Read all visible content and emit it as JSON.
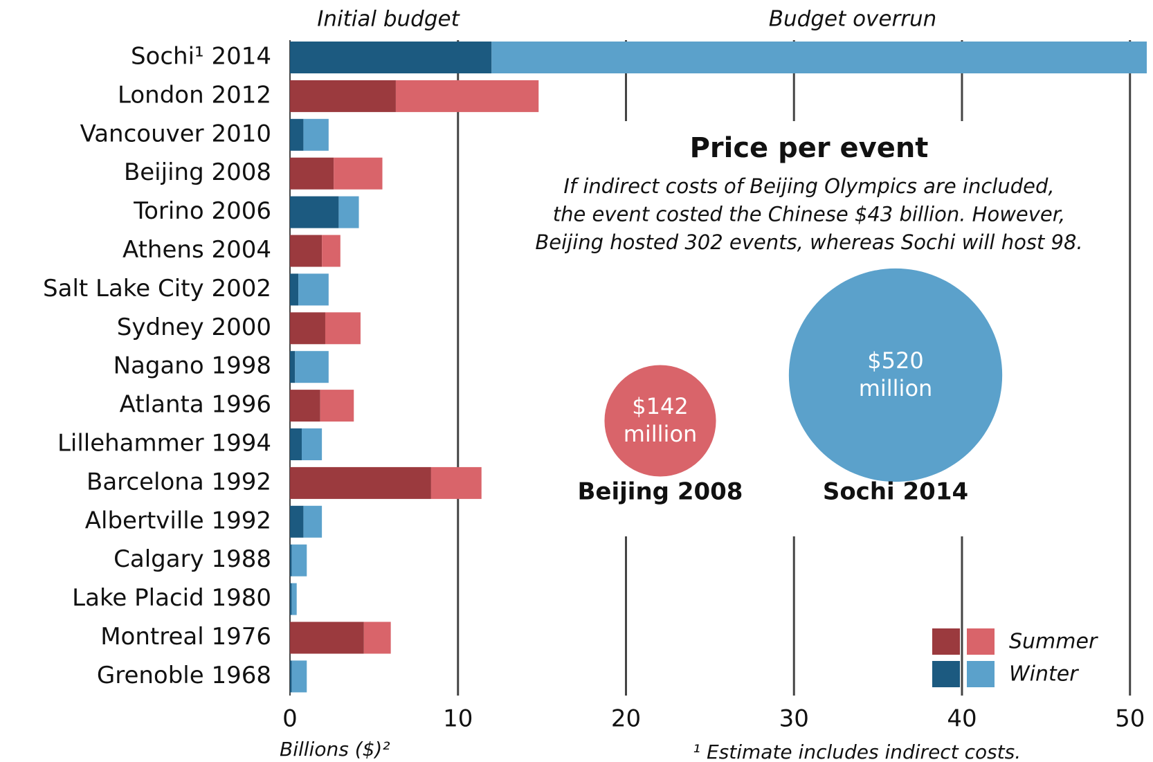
{
  "chart_data": {
    "type": "bar",
    "orientation": "horizontal",
    "stacked": true,
    "categories": [
      "Sochi¹ 2014",
      "London 2012",
      "Vancouver 2010",
      "Beijing 2008",
      "Torino 2006",
      "Athens 2004",
      "Salt Lake City 2002",
      "Sydney 2000",
      "Nagano 1998",
      "Atlanta 1996",
      "Lillehammer 1994",
      "Barcelona 1992",
      "Albertville 1992",
      "Calgary 1988",
      "Lake Placid 1980",
      "Montreal 1976",
      "Grenoble 1968"
    ],
    "series": [
      {
        "name": "Initial budget",
        "values": [
          12.0,
          6.3,
          0.8,
          2.6,
          2.9,
          1.9,
          0.5,
          2.1,
          0.3,
          1.8,
          0.7,
          8.4,
          0.8,
          0.1,
          0.1,
          4.4,
          0.1
        ],
        "colors": [
          "#1c5a80",
          "#9b3a3e",
          "#1c5a80",
          "#9b3a3e",
          "#1c5a80",
          "#9b3a3e",
          "#1c5a80",
          "#9b3a3e",
          "#1c5a80",
          "#9b3a3e",
          "#1c5a80",
          "#9b3a3e",
          "#1c5a80",
          "#1c5a80",
          "#1c5a80",
          "#9b3a3e",
          "#1c5a80"
        ]
      },
      {
        "name": "Budget overrun",
        "values": [
          39.0,
          8.5,
          1.5,
          2.9,
          1.2,
          1.1,
          1.8,
          2.1,
          2.0,
          2.0,
          1.2,
          3.0,
          1.1,
          0.9,
          0.3,
          1.6,
          0.9
        ],
        "colors": [
          "#5ba1cb",
          "#d9646a",
          "#5ba1cb",
          "#d9646a",
          "#5ba1cb",
          "#d9646a",
          "#5ba1cb",
          "#d9646a",
          "#5ba1cb",
          "#d9646a",
          "#5ba1cb",
          "#d9646a",
          "#5ba1cb",
          "#5ba1cb",
          "#5ba1cb",
          "#d9646a",
          "#5ba1cb"
        ]
      }
    ],
    "xlim": [
      0,
      51
    ],
    "xticks": [
      0,
      10,
      20,
      30,
      40,
      50
    ],
    "grid": true,
    "x_label": "Billions ($)²",
    "footnote": "¹ Estimate includes indirect costs.",
    "legend": [
      {
        "name": "Summer",
        "colors": [
          "#9b3a3e",
          "#d9646a"
        ]
      },
      {
        "name": "Winter",
        "colors": [
          "#1c5a80",
          "#5ba1cb"
        ]
      }
    ],
    "inset": {
      "title": "Price per event",
      "text": [
        "If indirect costs of Beijing Olympics are included,",
        "the event costed the Chinese $43 billion. However,",
        "Beijing hosted 302 events, whereas Sochi will host 98."
      ],
      "bubbles": [
        {
          "name": "Beijing 2008",
          "value": 142,
          "value_label": [
            "$142",
            "million"
          ],
          "color": "#d9646a"
        },
        {
          "name": "Sochi 2014",
          "value": 520,
          "value_label": [
            "$520",
            "million"
          ],
          "color": "#5ba1cb"
        }
      ]
    }
  }
}
